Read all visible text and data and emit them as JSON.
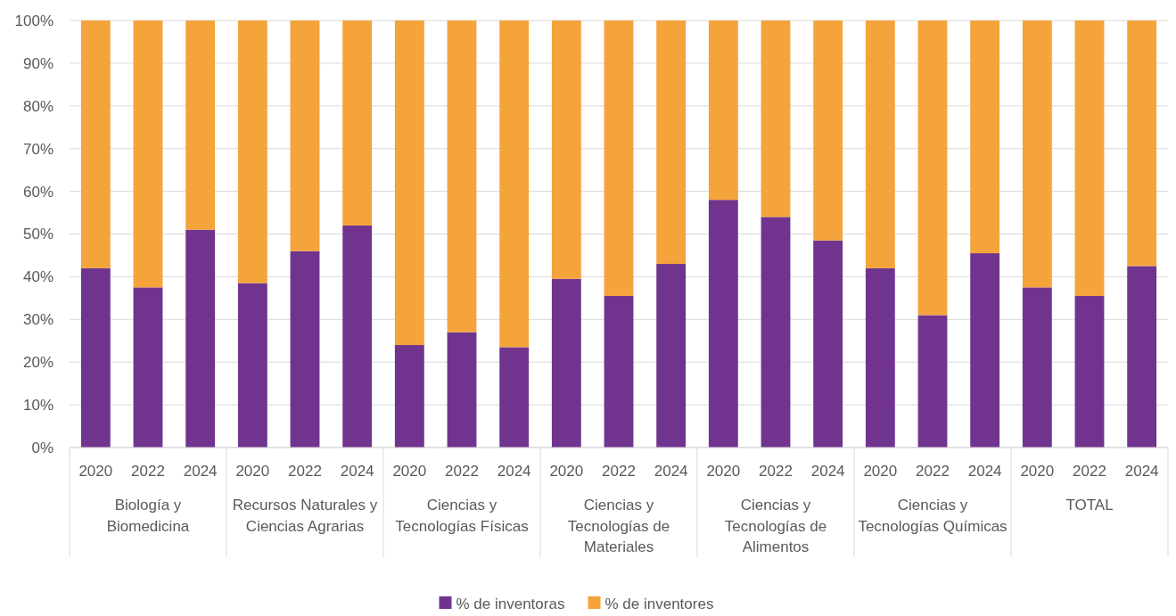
{
  "chart_data": {
    "type": "bar",
    "stacked": true,
    "categories": [
      "2020",
      "2022",
      "2024",
      "2020",
      "2022",
      "2024",
      "2020",
      "2022",
      "2024",
      "2020",
      "2022",
      "2024",
      "2020",
      "2022",
      "2024",
      "2020",
      "2022",
      "2024",
      "2020",
      "2022",
      "2024"
    ],
    "series": [
      {
        "name": "% de inventoras",
        "color": "#70348f",
        "values": [
          42,
          37.5,
          51,
          38.5,
          46,
          52,
          24,
          27,
          23.5,
          39.5,
          35.5,
          43,
          58,
          54,
          48.5,
          42,
          31,
          45.5,
          37.5,
          35.5,
          42.5
        ]
      },
      {
        "name": "% de inventores",
        "color": "#f5a33b",
        "values": [
          58,
          62.5,
          49,
          61.5,
          54,
          48,
          76,
          73,
          76.5,
          60.5,
          64.5,
          57,
          42,
          46,
          51.5,
          58,
          69,
          54.5,
          62.5,
          64.5,
          57.5
        ]
      }
    ],
    "annotations": [
      "Biología y Biomedicina",
      "Recursos Naturales y Ciencias Agrarias",
      "Ciencias y Tecnologías Físicas",
      "Ciencias y Tecnologías de Materiales",
      "Ciencias y Tecnologías de Alimentos",
      "Ciencias y Tecnologías Químicas",
      "TOTAL"
    ],
    "ylim": [
      0,
      100
    ],
    "yticks": [
      {
        "value": 0,
        "label": "0%"
      },
      {
        "value": 10,
        "label": "10%"
      },
      {
        "value": 20,
        "label": "20%"
      },
      {
        "value": 30,
        "label": "30%"
      },
      {
        "value": 40,
        "label": "40%"
      },
      {
        "value": 50,
        "label": "50%"
      },
      {
        "value": 60,
        "label": "60%"
      },
      {
        "value": 70,
        "label": "70%"
      },
      {
        "value": 80,
        "label": "80%"
      },
      {
        "value": 90,
        "label": "90%"
      },
      {
        "value": 100,
        "label": "100%"
      }
    ],
    "grid": "y",
    "legend": "bottom"
  }
}
